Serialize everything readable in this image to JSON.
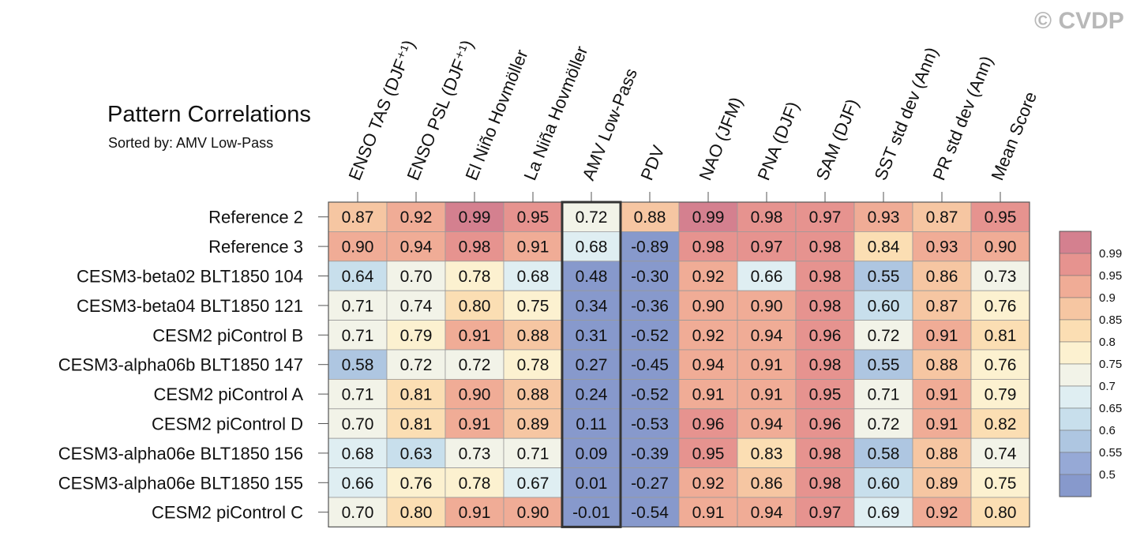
{
  "watermark": "© CVDP",
  "chart_data": {
    "type": "heatmap",
    "title": "Pattern Correlations",
    "subtitle": "Sorted by: AMV Low-Pass",
    "columns": [
      "ENSO TAS (DJF⁺¹)",
      "ENSO PSL (DJF⁺¹)",
      "El Niño Hovmöller",
      "La Niña Hovmöller",
      "AMV Low-Pass",
      "PDV",
      "NAO (JFM)",
      "PNA (DJF)",
      "SAM (DJF)",
      "SST std dev (Ann)",
      "PR std dev (Ann)",
      "Mean Score"
    ],
    "highlighted_column": "AMV Low-Pass",
    "rows": [
      {
        "name": "Reference 2",
        "values": [
          "0.87",
          "0.92",
          "0.99",
          "0.95",
          "0.72",
          "0.88",
          "0.99",
          "0.98",
          "0.97",
          "0.93",
          "0.87",
          "0.95"
        ]
      },
      {
        "name": "Reference 3",
        "values": [
          "0.90",
          "0.94",
          "0.98",
          "0.91",
          "0.68",
          "-0.89",
          "0.98",
          "0.97",
          "0.98",
          "0.84",
          "0.93",
          "0.90"
        ]
      },
      {
        "name": "CESM3-beta02 BLT1850 104",
        "values": [
          "0.64",
          "0.70",
          "0.78",
          "0.68",
          "0.48",
          "-0.30",
          "0.92",
          "0.66",
          "0.98",
          "0.55",
          "0.86",
          "0.73"
        ]
      },
      {
        "name": "CESM3-beta04 BLT1850 121",
        "values": [
          "0.71",
          "0.74",
          "0.80",
          "0.75",
          "0.34",
          "-0.36",
          "0.90",
          "0.90",
          "0.98",
          "0.60",
          "0.87",
          "0.76"
        ]
      },
      {
        "name": "CESM2 piControl B",
        "values": [
          "0.71",
          "0.79",
          "0.91",
          "0.88",
          "0.31",
          "-0.52",
          "0.92",
          "0.94",
          "0.96",
          "0.72",
          "0.91",
          "0.81"
        ]
      },
      {
        "name": "CESM3-alpha06b BLT1850 147",
        "values": [
          "0.58",
          "0.72",
          "0.72",
          "0.78",
          "0.27",
          "-0.45",
          "0.94",
          "0.91",
          "0.98",
          "0.55",
          "0.88",
          "0.76"
        ]
      },
      {
        "name": "CESM2 piControl A",
        "values": [
          "0.71",
          "0.81",
          "0.90",
          "0.88",
          "0.24",
          "-0.52",
          "0.91",
          "0.91",
          "0.95",
          "0.71",
          "0.91",
          "0.79"
        ]
      },
      {
        "name": "CESM2 piControl D",
        "values": [
          "0.70",
          "0.81",
          "0.91",
          "0.89",
          "0.11",
          "-0.53",
          "0.96",
          "0.94",
          "0.96",
          "0.72",
          "0.91",
          "0.82"
        ]
      },
      {
        "name": "CESM3-alpha06e BLT1850 156",
        "values": [
          "0.68",
          "0.63",
          "0.73",
          "0.71",
          "0.09",
          "-0.39",
          "0.95",
          "0.83",
          "0.98",
          "0.58",
          "0.88",
          "0.74"
        ]
      },
      {
        "name": "CESM3-alpha06e BLT1850 155",
        "values": [
          "0.66",
          "0.76",
          "0.78",
          "0.67",
          "0.01",
          "-0.27",
          "0.92",
          "0.86",
          "0.98",
          "0.60",
          "0.89",
          "0.75"
        ]
      },
      {
        "name": "CESM2 piControl C",
        "values": [
          "0.70",
          "0.80",
          "0.91",
          "0.90",
          "-0.01",
          "-0.54",
          "0.91",
          "0.94",
          "0.97",
          "0.69",
          "0.92",
          "0.80"
        ]
      }
    ],
    "colorbar": {
      "labels": [
        "0.99",
        "0.95",
        "0.9",
        "0.85",
        "0.8",
        "0.75",
        "0.7",
        "0.65",
        "0.6",
        "0.55",
        "0.5"
      ],
      "colors_top_to_bottom": [
        "#d4808f",
        "#e6938f",
        "#f0ac96",
        "#f6c6a2",
        "#fbdeb3",
        "#fcf1d0",
        "#f2f3e8",
        "#dfeef2",
        "#c8dfec",
        "#aec6e1",
        "#96a9d6",
        "#8799cc"
      ]
    },
    "color_bins": [
      {
        "min": 0.99,
        "color": "#d4808f"
      },
      {
        "min": 0.95,
        "color": "#e6938f"
      },
      {
        "min": 0.9,
        "color": "#f0ac96"
      },
      {
        "min": 0.85,
        "color": "#f6c6a2"
      },
      {
        "min": 0.8,
        "color": "#fbdeb3"
      },
      {
        "min": 0.75,
        "color": "#fcf1d0"
      },
      {
        "min": 0.7,
        "color": "#f2f3e8"
      },
      {
        "min": 0.65,
        "color": "#dfeef2"
      },
      {
        "min": 0.6,
        "color": "#c8dfec"
      },
      {
        "min": 0.55,
        "color": "#aec6e1"
      },
      {
        "min": 0.5,
        "color": "#96a9d6"
      },
      {
        "min": -99,
        "color": "#8799cc"
      }
    ]
  }
}
